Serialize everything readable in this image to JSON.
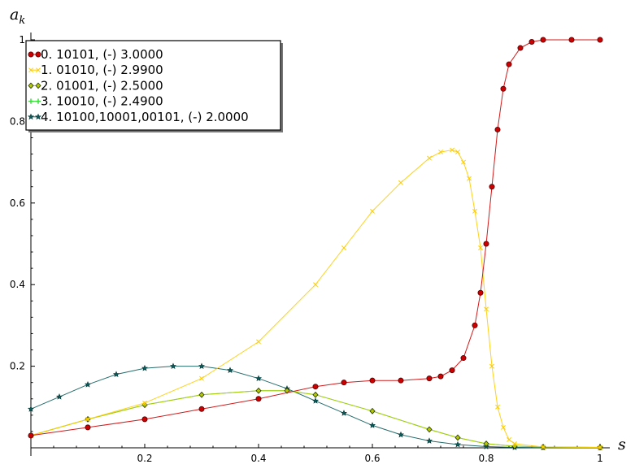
{
  "chart_data": {
    "type": "line",
    "xlabel": "s",
    "ylabel": "a",
    "ylabel_sub": "k",
    "xlim": [
      0,
      1
    ],
    "ylim": [
      0,
      1
    ],
    "xticks": [
      0.2,
      0.4,
      0.6,
      0.8,
      1.0
    ],
    "xtick_labels": [
      "0.2",
      "0.4",
      "0.6",
      "0.8",
      "1"
    ],
    "yticks": [
      0.2,
      0.4,
      0.6,
      0.8,
      1.0
    ],
    "ytick_labels": [
      "0.2",
      "0.4",
      "0.6",
      "0.8",
      "1"
    ],
    "grid": false,
    "legend_position": "top-left",
    "series": [
      {
        "name": "0. 10101, (-) 3.0000",
        "color": "#cc0000",
        "edge": "#550000",
        "marker": "circle",
        "x": [
          0,
          0.1,
          0.2,
          0.3,
          0.4,
          0.5,
          0.55,
          0.6,
          0.65,
          0.7,
          0.72,
          0.74,
          0.76,
          0.78,
          0.79,
          0.8,
          0.81,
          0.82,
          0.83,
          0.84,
          0.86,
          0.88,
          0.9,
          0.95,
          1.0
        ],
        "y": [
          0.03,
          0.05,
          0.07,
          0.095,
          0.12,
          0.15,
          0.16,
          0.165,
          0.165,
          0.17,
          0.175,
          0.19,
          0.22,
          0.3,
          0.38,
          0.5,
          0.64,
          0.78,
          0.88,
          0.94,
          0.98,
          0.995,
          1.0,
          1.0,
          1.0
        ]
      },
      {
        "name": "1. 01010, (-) 2.9900",
        "color": "#ffcc00",
        "edge": "#ffcc00",
        "marker": "x",
        "x": [
          0,
          0.1,
          0.2,
          0.3,
          0.4,
          0.5,
          0.55,
          0.6,
          0.65,
          0.7,
          0.72,
          0.74,
          0.75,
          0.76,
          0.77,
          0.78,
          0.79,
          0.8,
          0.81,
          0.82,
          0.83,
          0.84,
          0.85,
          0.9,
          1.0
        ],
        "y": [
          0.03,
          0.07,
          0.11,
          0.17,
          0.26,
          0.4,
          0.49,
          0.58,
          0.65,
          0.71,
          0.725,
          0.73,
          0.725,
          0.7,
          0.66,
          0.58,
          0.49,
          0.34,
          0.2,
          0.1,
          0.05,
          0.02,
          0.01,
          0.002,
          0.001
        ]
      },
      {
        "name": "2. 01001, (-) 2.5000",
        "color": "#b5c900",
        "edge": "#223300",
        "marker": "diamond",
        "x": [
          0,
          0.1,
          0.2,
          0.3,
          0.4,
          0.45,
          0.5,
          0.6,
          0.7,
          0.75,
          0.8,
          0.85,
          0.9,
          1.0
        ],
        "y": [
          0.03,
          0.07,
          0.105,
          0.13,
          0.14,
          0.14,
          0.13,
          0.09,
          0.045,
          0.025,
          0.01,
          0.004,
          0.002,
          0.001
        ]
      },
      {
        "name": "3. 10010, (-) 2.4900",
        "color": "#33dd33",
        "edge": "#33dd33",
        "marker": "plus",
        "x": [
          0,
          0.1,
          0.2,
          0.3,
          0.4,
          0.45,
          0.5,
          0.6,
          0.7,
          0.75,
          0.8,
          0.85,
          0.9,
          1.0
        ],
        "y": [
          0.03,
          0.07,
          0.105,
          0.13,
          0.14,
          0.14,
          0.13,
          0.09,
          0.045,
          0.025,
          0.01,
          0.004,
          0.002,
          0.001
        ]
      },
      {
        "name": "4. 10100,10001,00101, (-) 2.0000",
        "color": "#0d5c5c",
        "edge": "#003333",
        "marker": "star",
        "x": [
          0,
          0.05,
          0.1,
          0.15,
          0.2,
          0.25,
          0.3,
          0.35,
          0.4,
          0.45,
          0.5,
          0.55,
          0.6,
          0.65,
          0.7,
          0.75,
          0.8,
          0.85,
          0.9,
          1.0
        ],
        "y": [
          0.095,
          0.125,
          0.155,
          0.18,
          0.195,
          0.2,
          0.2,
          0.19,
          0.17,
          0.145,
          0.115,
          0.085,
          0.055,
          0.032,
          0.017,
          0.008,
          0.003,
          0.001,
          0.0005,
          0.0002
        ]
      }
    ]
  }
}
